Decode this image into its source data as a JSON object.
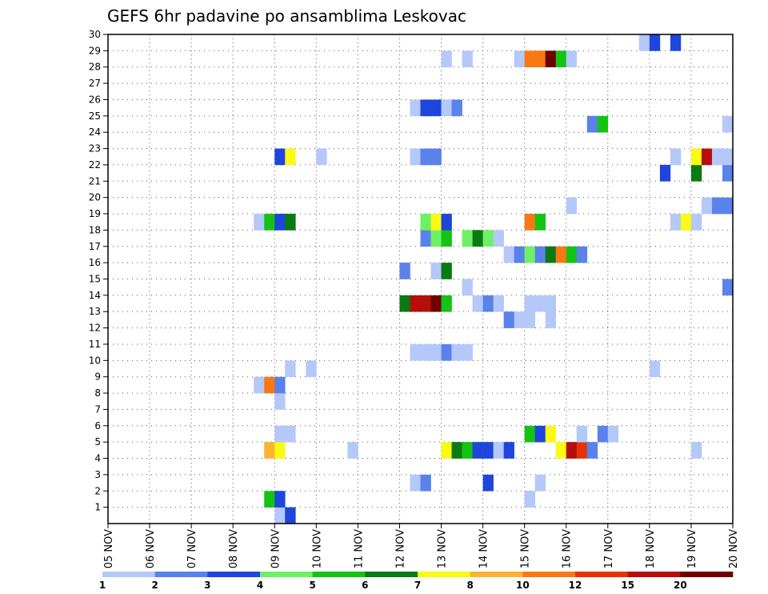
{
  "chart_data": {
    "type": "heatmap",
    "title": "GEFS 6hr padavine po ansamblima Leskovac",
    "xlabel": "",
    "ylabel": "",
    "x_tick_labels": [
      "05 NOV",
      "06 NOV",
      "07 NOV",
      "08 NOV",
      "09 NOV",
      "10 NOV",
      "11 NOV",
      "12 NOV",
      "13 NOV",
      "14 NOV",
      "15 NOV",
      "16 NOV",
      "17 NOV",
      "18 NOV",
      "19 NOV",
      "20 NOV"
    ],
    "y_tick_labels": [
      "1",
      "2",
      "3",
      "4",
      "5",
      "6",
      "7",
      "8",
      "9",
      "10",
      "11",
      "12",
      "13",
      "14",
      "15",
      "16",
      "17",
      "18",
      "19",
      "20",
      "21",
      "22",
      "23",
      "24",
      "25",
      "26",
      "27",
      "28",
      "29",
      "30"
    ],
    "x_step_hours": 6,
    "x_range_steps": [
      0,
      60
    ],
    "y_range": [
      0,
      30
    ],
    "grid": true,
    "colorbar": {
      "labels": [
        "1",
        "2",
        "3",
        "4",
        "5",
        "6",
        "7",
        "8",
        "10",
        "12",
        "15",
        "20"
      ],
      "colors": [
        "#b4c8fa",
        "#5a82eb",
        "#1e46dc",
        "#6ef064",
        "#14c314",
        "#0a7a12",
        "#fafa14",
        "#fab432",
        "#fa7814",
        "#e6320a",
        "#b40f0a",
        "#6e0000"
      ]
    },
    "cells": [
      {
        "m": 0,
        "t": 16,
        "c": 1
      },
      {
        "m": 0,
        "t": 17,
        "c": 3
      },
      {
        "m": 1,
        "t": 15,
        "c": 5
      },
      {
        "m": 1,
        "t": 16,
        "c": 3
      },
      {
        "m": 1,
        "t": 40,
        "c": 1
      },
      {
        "m": 2,
        "t": 29,
        "c": 1
      },
      {
        "m": 2,
        "t": 30,
        "c": 2
      },
      {
        "m": 2,
        "t": 36,
        "c": 3
      },
      {
        "m": 2,
        "t": 41,
        "c": 1
      },
      {
        "m": 4,
        "t": 15,
        "c": 8
      },
      {
        "m": 4,
        "t": 16,
        "c": 7
      },
      {
        "m": 4,
        "t": 23,
        "c": 1
      },
      {
        "m": 4,
        "t": 32,
        "c": 7
      },
      {
        "m": 4,
        "t": 33,
        "c": 6
      },
      {
        "m": 4,
        "t": 34,
        "c": 5
      },
      {
        "m": 4,
        "t": 35,
        "c": 3
      },
      {
        "m": 4,
        "t": 36,
        "c": 3
      },
      {
        "m": 4,
        "t": 37,
        "c": 1
      },
      {
        "m": 4,
        "t": 38,
        "c": 3
      },
      {
        "m": 4,
        "t": 43,
        "c": 7
      },
      {
        "m": 4,
        "t": 44,
        "c": 11
      },
      {
        "m": 4,
        "t": 45,
        "c": 10
      },
      {
        "m": 4,
        "t": 46,
        "c": 2
      },
      {
        "m": 4,
        "t": 56,
        "c": 1
      },
      {
        "m": 5,
        "t": 16,
        "c": 1
      },
      {
        "m": 5,
        "t": 17,
        "c": 1
      },
      {
        "m": 5,
        "t": 40,
        "c": 5
      },
      {
        "m": 5,
        "t": 41,
        "c": 3
      },
      {
        "m": 5,
        "t": 42,
        "c": 7
      },
      {
        "m": 5,
        "t": 45,
        "c": 1
      },
      {
        "m": 5,
        "t": 47,
        "c": 2
      },
      {
        "m": 5,
        "t": 48,
        "c": 1
      },
      {
        "m": 7,
        "t": 16,
        "c": 1
      },
      {
        "m": 8,
        "t": 14,
        "c": 1
      },
      {
        "m": 8,
        "t": 15,
        "c": 9
      },
      {
        "m": 8,
        "t": 16,
        "c": 2
      },
      {
        "m": 9,
        "t": 17,
        "c": 1
      },
      {
        "m": 9,
        "t": 19,
        "c": 1
      },
      {
        "m": 9,
        "t": 52,
        "c": 1
      },
      {
        "m": 10,
        "t": 29,
        "c": 1
      },
      {
        "m": 10,
        "t": 30,
        "c": 1
      },
      {
        "m": 10,
        "t": 31,
        "c": 1
      },
      {
        "m": 10,
        "t": 32,
        "c": 2
      },
      {
        "m": 10,
        "t": 33,
        "c": 1
      },
      {
        "m": 10,
        "t": 34,
        "c": 1
      },
      {
        "m": 12,
        "t": 38,
        "c": 2
      },
      {
        "m": 12,
        "t": 39,
        "c": 1
      },
      {
        "m": 12,
        "t": 40,
        "c": 1
      },
      {
        "m": 12,
        "t": 42,
        "c": 1
      },
      {
        "m": 13,
        "t": 28,
        "c": 6
      },
      {
        "m": 13,
        "t": 29,
        "c": 11
      },
      {
        "m": 13,
        "t": 30,
        "c": 11
      },
      {
        "m": 13,
        "t": 31,
        "c": 12
      },
      {
        "m": 13,
        "t": 32,
        "c": 5
      },
      {
        "m": 13,
        "t": 35,
        "c": 1
      },
      {
        "m": 13,
        "t": 36,
        "c": 2
      },
      {
        "m": 13,
        "t": 37,
        "c": 1
      },
      {
        "m": 13,
        "t": 40,
        "c": 1
      },
      {
        "m": 13,
        "t": 41,
        "c": 1
      },
      {
        "m": 13,
        "t": 42,
        "c": 1
      },
      {
        "m": 14,
        "t": 34,
        "c": 1
      },
      {
        "m": 14,
        "t": 59,
        "c": 2
      },
      {
        "m": 14,
        "t": 60,
        "c": 1
      },
      {
        "m": 15,
        "t": 28,
        "c": 2
      },
      {
        "m": 15,
        "t": 31,
        "c": 1
      },
      {
        "m": 15,
        "t": 32,
        "c": 6
      },
      {
        "m": 16,
        "t": 38,
        "c": 1
      },
      {
        "m": 16,
        "t": 39,
        "c": 2
      },
      {
        "m": 16,
        "t": 40,
        "c": 4
      },
      {
        "m": 16,
        "t": 41,
        "c": 2
      },
      {
        "m": 16,
        "t": 42,
        "c": 6
      },
      {
        "m": 16,
        "t": 43,
        "c": 9
      },
      {
        "m": 16,
        "t": 44,
        "c": 5
      },
      {
        "m": 16,
        "t": 45,
        "c": 2
      },
      {
        "m": 17,
        "t": 30,
        "c": 2
      },
      {
        "m": 17,
        "t": 31,
        "c": 4
      },
      {
        "m": 17,
        "t": 32,
        "c": 5
      },
      {
        "m": 17,
        "t": 34,
        "c": 4
      },
      {
        "m": 17,
        "t": 35,
        "c": 6
      },
      {
        "m": 17,
        "t": 36,
        "c": 4
      },
      {
        "m": 17,
        "t": 37,
        "c": 1
      },
      {
        "m": 18,
        "t": 14,
        "c": 1
      },
      {
        "m": 18,
        "t": 15,
        "c": 5
      },
      {
        "m": 18,
        "t": 16,
        "c": 3
      },
      {
        "m": 18,
        "t": 17,
        "c": 6
      },
      {
        "m": 18,
        "t": 30,
        "c": 4
      },
      {
        "m": 18,
        "t": 31,
        "c": 7
      },
      {
        "m": 18,
        "t": 32,
        "c": 3
      },
      {
        "m": 18,
        "t": 40,
        "c": 9
      },
      {
        "m": 18,
        "t": 41,
        "c": 5
      },
      {
        "m": 18,
        "t": 54,
        "c": 1
      },
      {
        "m": 18,
        "t": 55,
        "c": 7
      },
      {
        "m": 18,
        "t": 56,
        "c": 1
      },
      {
        "m": 18,
        "t": 60,
        "c": 8
      },
      {
        "m": 19,
        "t": 44,
        "c": 1
      },
      {
        "m": 19,
        "t": 57,
        "c": 1
      },
      {
        "m": 19,
        "t": 58,
        "c": 2
      },
      {
        "m": 19,
        "t": 59,
        "c": 2
      },
      {
        "m": 21,
        "t": 53,
        "c": 3
      },
      {
        "m": 21,
        "t": 56,
        "c": 6
      },
      {
        "m": 21,
        "t": 59,
        "c": 2
      },
      {
        "m": 22,
        "t": 16,
        "c": 3
      },
      {
        "m": 22,
        "t": 17,
        "c": 7
      },
      {
        "m": 22,
        "t": 20,
        "c": 1
      },
      {
        "m": 22,
        "t": 29,
        "c": 1
      },
      {
        "m": 22,
        "t": 30,
        "c": 2
      },
      {
        "m": 22,
        "t": 31,
        "c": 2
      },
      {
        "m": 22,
        "t": 54,
        "c": 1
      },
      {
        "m": 22,
        "t": 56,
        "c": 7
      },
      {
        "m": 22,
        "t": 57,
        "c": 11
      },
      {
        "m": 22,
        "t": 58,
        "c": 1
      },
      {
        "m": 22,
        "t": 59,
        "c": 1
      },
      {
        "m": 24,
        "t": 46,
        "c": 2
      },
      {
        "m": 24,
        "t": 47,
        "c": 5
      },
      {
        "m": 24,
        "t": 59,
        "c": 1
      },
      {
        "m": 25,
        "t": 29,
        "c": 1
      },
      {
        "m": 25,
        "t": 30,
        "c": 3
      },
      {
        "m": 25,
        "t": 31,
        "c": 3
      },
      {
        "m": 25,
        "t": 32,
        "c": 1
      },
      {
        "m": 25,
        "t": 33,
        "c": 2
      },
      {
        "m": 28,
        "t": 32,
        "c": 1
      },
      {
        "m": 28,
        "t": 34,
        "c": 1
      },
      {
        "m": 28,
        "t": 39,
        "c": 1
      },
      {
        "m": 28,
        "t": 40,
        "c": 9
      },
      {
        "m": 28,
        "t": 41,
        "c": 9
      },
      {
        "m": 28,
        "t": 42,
        "c": 12
      },
      {
        "m": 28,
        "t": 43,
        "c": 5
      },
      {
        "m": 28,
        "t": 44,
        "c": 1
      },
      {
        "m": 29,
        "t": 51,
        "c": 1
      },
      {
        "m": 29,
        "t": 52,
        "c": 3
      },
      {
        "m": 29,
        "t": 54,
        "c": 3
      }
    ]
  }
}
